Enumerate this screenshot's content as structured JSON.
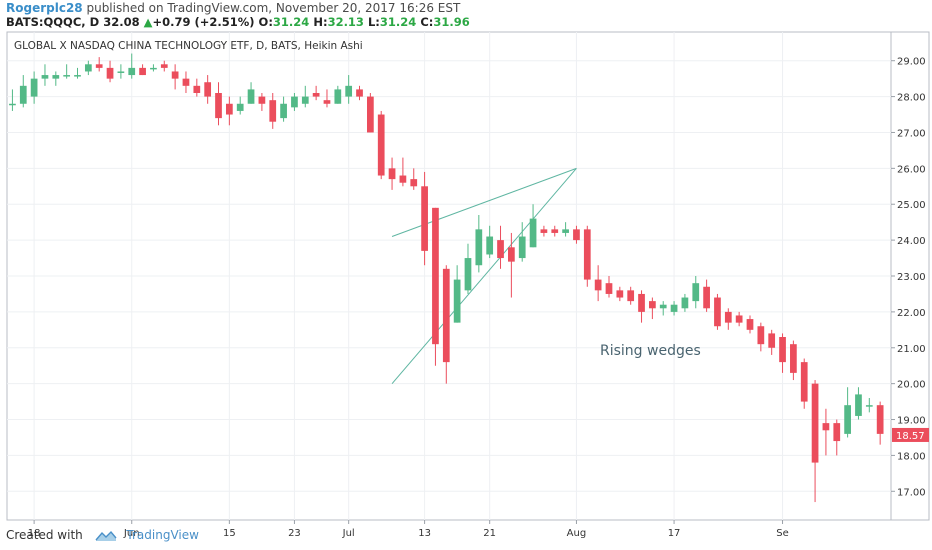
{
  "header": {
    "user": "Rogerplc28",
    "published_text": " published on TradingView.com, November 20, 2017 16:26 EST",
    "symbol": "BATS:QQQC, D",
    "last": "32.08",
    "change": "+0.79 (+2.51%)",
    "o_label": "O:",
    "o_value": "31.24",
    "h_label": "H:",
    "h_value": "32.13",
    "l_label": "L:",
    "l_value": "31.24",
    "c_label": "C:",
    "c_value": "31.96"
  },
  "footer": {
    "created_with": "Created with",
    "brand": "TradingView"
  },
  "colors": {
    "up": "#53b987",
    "down": "#eb4d5c",
    "wedge": "#5fb6a2",
    "price_badge": "#eb4d5c"
  },
  "chart_data": {
    "type": "candlestick",
    "title": "GLOBAL X NASDAQ CHINA TECHNOLOGY ETF, D, BATS, Heikin Ashi",
    "ylim": [
      16.2,
      29.8
    ],
    "y_ticks": [
      "29.00",
      "28.00",
      "27.00",
      "26.00",
      "25.00",
      "24.00",
      "23.00",
      "22.00",
      "21.00",
      "20.00",
      "19.00",
      "18.00",
      "17.00"
    ],
    "x_ticks": [
      {
        "label": "18",
        "index": 2
      },
      {
        "label": "Jun",
        "index": 11
      },
      {
        "label": "15",
        "index": 20
      },
      {
        "label": "23",
        "index": 26
      },
      {
        "label": "Jul",
        "index": 31
      },
      {
        "label": "13",
        "index": 38
      },
      {
        "label": "21",
        "index": 44
      },
      {
        "label": "Aug",
        "index": 52
      },
      {
        "label": "17",
        "index": 61
      },
      {
        "label": "Se",
        "index": 71
      }
    ],
    "last_price": "18.57",
    "annotation": "Rising wedges",
    "wedge_lines": [
      {
        "from": [
          35,
          24.1
        ],
        "to": [
          52,
          26.0
        ]
      },
      {
        "from": [
          35,
          20.0
        ],
        "to": [
          52,
          26.0
        ]
      }
    ],
    "candles": [
      {
        "o": 27.8,
        "h": 28.2,
        "l": 27.6,
        "c": 27.8
      },
      {
        "o": 27.8,
        "h": 28.6,
        "l": 27.7,
        "c": 28.3
      },
      {
        "o": 28.0,
        "h": 28.7,
        "l": 27.8,
        "c": 28.5
      },
      {
        "o": 28.5,
        "h": 28.9,
        "l": 28.3,
        "c": 28.6
      },
      {
        "o": 28.5,
        "h": 28.7,
        "l": 28.3,
        "c": 28.6
      },
      {
        "o": 28.6,
        "h": 28.9,
        "l": 28.5,
        "c": 28.6
      },
      {
        "o": 28.6,
        "h": 28.8,
        "l": 28.5,
        "c": 28.6
      },
      {
        "o": 28.7,
        "h": 29.0,
        "l": 28.6,
        "c": 28.9
      },
      {
        "o": 28.9,
        "h": 29.1,
        "l": 28.7,
        "c": 28.8
      },
      {
        "o": 28.8,
        "h": 29.0,
        "l": 28.4,
        "c": 28.5
      },
      {
        "o": 28.7,
        "h": 28.9,
        "l": 28.5,
        "c": 28.7
      },
      {
        "o": 28.6,
        "h": 29.2,
        "l": 28.5,
        "c": 28.8
      },
      {
        "o": 28.8,
        "h": 28.9,
        "l": 28.6,
        "c": 28.6
      },
      {
        "o": 28.8,
        "h": 28.9,
        "l": 28.7,
        "c": 28.8
      },
      {
        "o": 28.9,
        "h": 29.0,
        "l": 28.7,
        "c": 28.8
      },
      {
        "o": 28.7,
        "h": 28.9,
        "l": 28.2,
        "c": 28.5
      },
      {
        "o": 28.5,
        "h": 28.7,
        "l": 28.1,
        "c": 28.3
      },
      {
        "o": 28.3,
        "h": 28.5,
        "l": 28.0,
        "c": 28.1
      },
      {
        "o": 28.4,
        "h": 28.6,
        "l": 27.8,
        "c": 28.0
      },
      {
        "o": 28.1,
        "h": 28.4,
        "l": 27.2,
        "c": 27.4
      },
      {
        "o": 27.8,
        "h": 28.0,
        "l": 27.2,
        "c": 27.5
      },
      {
        "o": 27.6,
        "h": 28.0,
        "l": 27.5,
        "c": 27.8
      },
      {
        "o": 27.8,
        "h": 28.4,
        "l": 27.8,
        "c": 28.2
      },
      {
        "o": 28.0,
        "h": 28.1,
        "l": 27.6,
        "c": 27.8
      },
      {
        "o": 27.9,
        "h": 28.1,
        "l": 27.1,
        "c": 27.3
      },
      {
        "o": 27.4,
        "h": 28.0,
        "l": 27.3,
        "c": 27.8
      },
      {
        "o": 27.7,
        "h": 28.1,
        "l": 27.6,
        "c": 28.0
      },
      {
        "o": 27.8,
        "h": 28.3,
        "l": 27.7,
        "c": 28.0
      },
      {
        "o": 28.1,
        "h": 28.3,
        "l": 27.9,
        "c": 28.0
      },
      {
        "o": 27.9,
        "h": 28.2,
        "l": 27.7,
        "c": 27.8
      },
      {
        "o": 27.8,
        "h": 28.3,
        "l": 27.8,
        "c": 28.2
      },
      {
        "o": 28.0,
        "h": 28.6,
        "l": 27.8,
        "c": 28.3
      },
      {
        "o": 28.2,
        "h": 28.3,
        "l": 27.9,
        "c": 28.0
      },
      {
        "o": 28.0,
        "h": 28.1,
        "l": 27.0,
        "c": 27.0
      },
      {
        "o": 27.5,
        "h": 27.6,
        "l": 25.7,
        "c": 25.8
      },
      {
        "o": 26.0,
        "h": 26.3,
        "l": 25.4,
        "c": 25.7
      },
      {
        "o": 25.8,
        "h": 26.3,
        "l": 25.5,
        "c": 25.6
      },
      {
        "o": 25.7,
        "h": 26.0,
        "l": 25.4,
        "c": 25.5
      },
      {
        "o": 25.5,
        "h": 25.9,
        "l": 23.3,
        "c": 23.7
      },
      {
        "o": 24.9,
        "h": 24.9,
        "l": 20.5,
        "c": 21.1
      },
      {
        "o": 23.2,
        "h": 23.3,
        "l": 20.0,
        "c": 20.6
      },
      {
        "o": 21.7,
        "h": 23.3,
        "l": 21.7,
        "c": 22.9
      },
      {
        "o": 22.6,
        "h": 23.9,
        "l": 22.5,
        "c": 23.5
      },
      {
        "o": 23.3,
        "h": 24.7,
        "l": 23.1,
        "c": 24.3
      },
      {
        "o": 23.6,
        "h": 24.4,
        "l": 23.5,
        "c": 24.1
      },
      {
        "o": 24.0,
        "h": 24.4,
        "l": 23.2,
        "c": 23.5
      },
      {
        "o": 23.8,
        "h": 24.2,
        "l": 22.4,
        "c": 23.4
      },
      {
        "o": 23.5,
        "h": 24.5,
        "l": 23.4,
        "c": 24.1
      },
      {
        "o": 23.8,
        "h": 25.0,
        "l": 23.8,
        "c": 24.6
      },
      {
        "o": 24.3,
        "h": 24.4,
        "l": 24.1,
        "c": 24.2
      },
      {
        "o": 24.3,
        "h": 24.4,
        "l": 24.1,
        "c": 24.2
      },
      {
        "o": 24.2,
        "h": 24.5,
        "l": 24.1,
        "c": 24.3
      },
      {
        "o": 24.3,
        "h": 24.4,
        "l": 23.9,
        "c": 24.0
      },
      {
        "o": 24.3,
        "h": 24.4,
        "l": 22.7,
        "c": 22.9
      },
      {
        "o": 22.9,
        "h": 23.3,
        "l": 22.3,
        "c": 22.6
      },
      {
        "o": 22.8,
        "h": 23.0,
        "l": 22.4,
        "c": 22.5
      },
      {
        "o": 22.6,
        "h": 22.7,
        "l": 22.3,
        "c": 22.4
      },
      {
        "o": 22.6,
        "h": 22.7,
        "l": 22.2,
        "c": 22.3
      },
      {
        "o": 22.5,
        "h": 22.6,
        "l": 21.7,
        "c": 22.0
      },
      {
        "o": 22.3,
        "h": 22.4,
        "l": 21.8,
        "c": 22.1
      },
      {
        "o": 22.1,
        "h": 22.3,
        "l": 21.9,
        "c": 22.2
      },
      {
        "o": 22.0,
        "h": 22.3,
        "l": 21.9,
        "c": 22.2
      },
      {
        "o": 22.1,
        "h": 22.5,
        "l": 22.0,
        "c": 22.4
      },
      {
        "o": 22.3,
        "h": 23.0,
        "l": 22.1,
        "c": 22.8
      },
      {
        "o": 22.7,
        "h": 22.9,
        "l": 22.0,
        "c": 22.1
      },
      {
        "o": 22.4,
        "h": 22.5,
        "l": 21.5,
        "c": 21.6
      },
      {
        "o": 22.0,
        "h": 22.1,
        "l": 21.5,
        "c": 21.7
      },
      {
        "o": 21.9,
        "h": 22.0,
        "l": 21.6,
        "c": 21.7
      },
      {
        "o": 21.8,
        "h": 21.9,
        "l": 21.4,
        "c": 21.5
      },
      {
        "o": 21.6,
        "h": 21.7,
        "l": 20.9,
        "c": 21.1
      },
      {
        "o": 21.4,
        "h": 21.5,
        "l": 20.8,
        "c": 21.0
      },
      {
        "o": 21.3,
        "h": 21.4,
        "l": 20.3,
        "c": 20.6
      },
      {
        "o": 21.1,
        "h": 21.2,
        "l": 20.1,
        "c": 20.3
      },
      {
        "o": 20.6,
        "h": 20.7,
        "l": 19.3,
        "c": 19.5
      },
      {
        "o": 20.0,
        "h": 20.1,
        "l": 16.7,
        "c": 17.8
      },
      {
        "o": 18.9,
        "h": 19.3,
        "l": 18.0,
        "c": 18.7
      },
      {
        "o": 18.9,
        "h": 19.0,
        "l": 18.0,
        "c": 18.4
      },
      {
        "o": 18.6,
        "h": 19.9,
        "l": 18.5,
        "c": 19.4
      },
      {
        "o": 19.1,
        "h": 19.9,
        "l": 19.0,
        "c": 19.7
      },
      {
        "o": 19.4,
        "h": 19.6,
        "l": 19.2,
        "c": 19.4
      },
      {
        "o": 19.4,
        "h": 19.5,
        "l": 18.3,
        "c": 18.6
      }
    ]
  }
}
